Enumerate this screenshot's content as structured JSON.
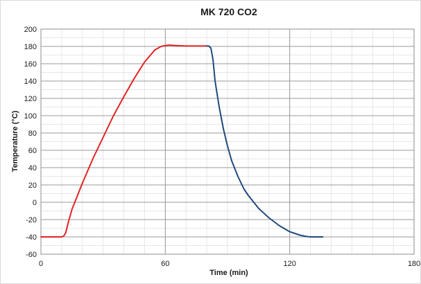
{
  "chart_data": {
    "type": "line",
    "title": "MK 720 CO2",
    "xlabel": "Time (min)",
    "ylabel": "Temperature (°C)",
    "xlim": [
      0,
      180
    ],
    "ylim": [
      -60,
      200
    ],
    "x_ticks": [
      0,
      60,
      120,
      180
    ],
    "y_ticks": [
      -60,
      -40,
      -20,
      0,
      20,
      40,
      60,
      80,
      100,
      120,
      140,
      160,
      180,
      200
    ],
    "x_minor_step": 10,
    "y_minor_step": 10,
    "grid": true,
    "legend": "none",
    "series": [
      {
        "color": "#e32222",
        "x": [
          0,
          5,
          10,
          11,
          12,
          13,
          15,
          20,
          25,
          30,
          35,
          40,
          45,
          50,
          55,
          58,
          60,
          62,
          65,
          70,
          75,
          80
        ],
        "y": [
          -40,
          -40,
          -40,
          -39,
          -35,
          -25,
          -8,
          22,
          50,
          75,
          100,
          122,
          143,
          162,
          176,
          180,
          181,
          181.5,
          181,
          180.5,
          180.5,
          180.5
        ]
      },
      {
        "color": "#1f497d",
        "x": [
          80,
          81,
          82,
          83,
          84,
          86,
          88,
          90,
          92,
          95,
          98,
          100,
          105,
          110,
          115,
          120,
          125,
          128,
          130,
          133,
          136
        ],
        "y": [
          180.5,
          180.5,
          178,
          165,
          140,
          110,
          85,
          65,
          48,
          30,
          15,
          8,
          -7,
          -18,
          -27,
          -34,
          -38,
          -39.5,
          -40,
          -40,
          -40
        ]
      }
    ]
  }
}
